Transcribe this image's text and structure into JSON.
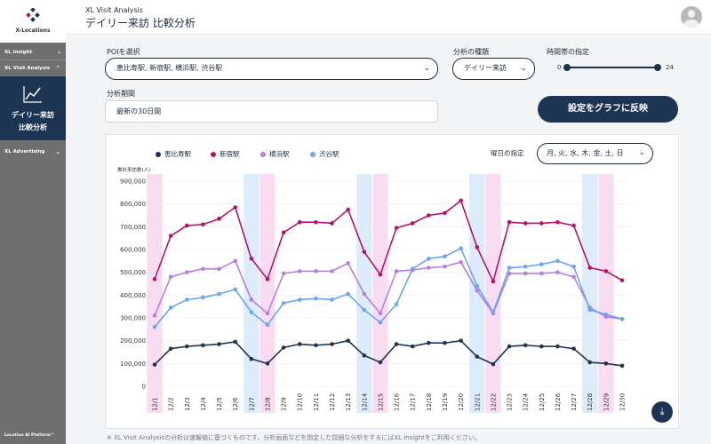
{
  "sidebar": {
    "logo_text": "X-Locations",
    "items": [
      {
        "label": "XL Insight",
        "chevron": "›"
      },
      {
        "label": "XL Visit Analysis",
        "chevron": "⌃"
      },
      {
        "label": "XL Advertising",
        "chevron": "⌄"
      }
    ],
    "active_item": {
      "line1": "デイリー来訪",
      "line2": "比較分析",
      "icon": "line-chart-icon"
    },
    "footer": "Location AI Platform™"
  },
  "header": {
    "subtitle": "XL Visit Analysis",
    "title": "デイリー来訪 比較分析"
  },
  "controls": {
    "poi_label": "POIを選択",
    "poi_value": "恵比寿駅, 新宿駅, 横浜駅, 渋谷駅",
    "analysis_type_label": "分析の種類",
    "analysis_type_value": "デイリー来訪",
    "time_label": "時間帯の指定",
    "time_min": "0",
    "time_max": "24",
    "period_label": "分析期間",
    "period_value": "最新の30日間",
    "apply_label": "設定をグラフに反映",
    "weekday_label": "曜日の指定",
    "weekday_value": "月, 火, 水, 木, 金, 土, 日"
  },
  "footnote": "※ XL Visit Analysisの分析は速報値に基づくものです。分析画面などを指定した詳細な分析をするにはXL Insightをご利用ください。",
  "colors": {
    "navy": "#1c3552",
    "magenta": "#b5136b",
    "purple": "#b57fdc",
    "blue": "#6aa5ee",
    "weekend_pink": "#f9dcf2",
    "weekend_blue": "#dcecfb"
  },
  "chart_data": {
    "type": "line",
    "ylabel": "推計来訪数(人)",
    "ylim": [
      0,
      900000
    ],
    "yticks": [
      "0",
      "100,000",
      "200,000",
      "300,000",
      "400,000",
      "500,000",
      "600,000",
      "700,000",
      "800,000",
      "900,000"
    ],
    "categories": [
      "12/1",
      "12/2",
      "12/3",
      "12/4",
      "12/5",
      "12/6",
      "12/7",
      "12/8",
      "12/9",
      "12/10",
      "12/11",
      "12/12",
      "12/13",
      "12/14",
      "12/15",
      "12/16",
      "12/17",
      "12/18",
      "12/19",
      "12/20",
      "12/21",
      "12/22",
      "12/23",
      "12/24",
      "12/25",
      "12/26",
      "12/27",
      "12/28",
      "12/29",
      "12/30"
    ],
    "weekend_highlight": {
      "saturday": [
        6,
        13,
        20,
        27
      ],
      "sunday": [
        0,
        7,
        14,
        21,
        28
      ]
    },
    "series": [
      {
        "name": "恵比寿駅",
        "color": "#1c3552",
        "values": [
          95000,
          165000,
          175000,
          180000,
          185000,
          195000,
          120000,
          100000,
          170000,
          185000,
          180000,
          185000,
          200000,
          135000,
          105000,
          185000,
          175000,
          190000,
          190000,
          200000,
          130000,
          97000,
          175000,
          180000,
          175000,
          175000,
          165000,
          105000,
          100000,
          90000
        ]
      },
      {
        "name": "新宿駅",
        "color": "#b5136b",
        "values": [
          470000,
          660000,
          705000,
          710000,
          735000,
          785000,
          560000,
          470000,
          675000,
          720000,
          720000,
          715000,
          775000,
          590000,
          490000,
          695000,
          715000,
          750000,
          760000,
          815000,
          610000,
          460000,
          720000,
          715000,
          715000,
          720000,
          705000,
          520000,
          505000,
          465000
        ]
      },
      {
        "name": "横浜駅",
        "color": "#b57fdc",
        "values": [
          310000,
          480000,
          500000,
          515000,
          515000,
          550000,
          380000,
          320000,
          495000,
          505000,
          505000,
          505000,
          540000,
          405000,
          320000,
          505000,
          510000,
          520000,
          525000,
          545000,
          420000,
          320000,
          495000,
          495000,
          495000,
          500000,
          480000,
          345000,
          305000,
          295000
        ]
      },
      {
        "name": "渋谷駅",
        "color": "#6aa5ee",
        "values": [
          260000,
          345000,
          380000,
          390000,
          405000,
          425000,
          325000,
          270000,
          365000,
          380000,
          385000,
          380000,
          405000,
          335000,
          280000,
          360000,
          515000,
          560000,
          570000,
          605000,
          440000,
          325000,
          520000,
          525000,
          535000,
          550000,
          525000,
          335000,
          315000,
          295000
        ]
      }
    ]
  }
}
